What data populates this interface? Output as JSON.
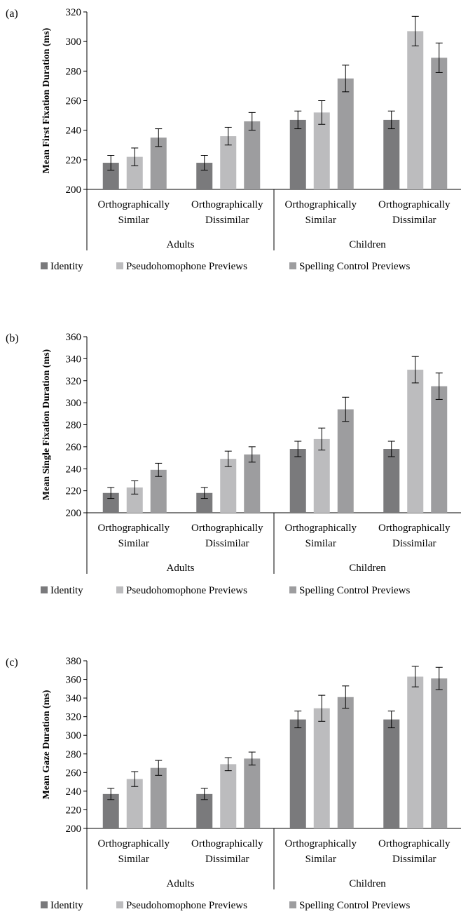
{
  "chart_data": [
    {
      "type": "bar",
      "panel_label": "(a)",
      "ylabel": "Mean First Fixation Duration (ms)",
      "ylim": [
        200,
        320
      ],
      "yticks": [
        200,
        220,
        240,
        260,
        280,
        300,
        320
      ],
      "groups": [
        "Adults",
        "Children"
      ],
      "categories": [
        "Orthographically Similar",
        "Orthographically Dissimilar",
        "Orthographically Similar",
        "Orthographically Dissimilar"
      ],
      "category_lines": [
        [
          "Orthographically",
          "Similar"
        ],
        [
          "Orthographically",
          "Dissimilar"
        ],
        [
          "Orthographically",
          "Similar"
        ],
        [
          "Orthographically",
          "Dissimilar"
        ]
      ],
      "series": [
        {
          "name": "Identity",
          "values": [
            218,
            218,
            247,
            247
          ],
          "errors": [
            5,
            5,
            6,
            6
          ],
          "color": "#7a7a7c"
        },
        {
          "name": "Pseudohomophone Previews",
          "values": [
            222,
            236,
            252,
            307
          ],
          "errors": [
            6,
            6,
            8,
            10
          ],
          "color": "#bcbcbe"
        },
        {
          "name": "Spelling Control Previews",
          "values": [
            235,
            246,
            275,
            289
          ],
          "errors": [
            6,
            6,
            9,
            10
          ],
          "color": "#9d9d9f"
        }
      ],
      "legend": "bottom"
    },
    {
      "type": "bar",
      "panel_label": "(b)",
      "ylabel": "Mean Single Fixation Duration (ms)",
      "ylim": [
        200,
        360
      ],
      "yticks": [
        200,
        220,
        240,
        260,
        280,
        300,
        320,
        340,
        360
      ],
      "groups": [
        "Adults",
        "Children"
      ],
      "categories": [
        "Orthographically Similar",
        "Orthographically Dissimilar",
        "Orthographically Similar",
        "Orthographically Dissimilar"
      ],
      "category_lines": [
        [
          "Orthographically",
          "Similar"
        ],
        [
          "Orthographically",
          "Dissimilar"
        ],
        [
          "Orthographically",
          "Similar"
        ],
        [
          "Orthographically",
          "Dissimilar"
        ]
      ],
      "series": [
        {
          "name": "Identity",
          "values": [
            218,
            218,
            258,
            258
          ],
          "errors": [
            5,
            5,
            7,
            7
          ],
          "color": "#7a7a7c"
        },
        {
          "name": "Pseudohomophone Previews",
          "values": [
            223,
            249,
            267,
            330
          ],
          "errors": [
            6,
            7,
            10,
            12
          ],
          "color": "#bcbcbe"
        },
        {
          "name": "Spelling Control Previews",
          "values": [
            239,
            253,
            294,
            315
          ],
          "errors": [
            6,
            7,
            11,
            12
          ],
          "color": "#9d9d9f"
        }
      ],
      "legend": "bottom"
    },
    {
      "type": "bar",
      "panel_label": "(c)",
      "ylabel": "Mean Gaze Duration (ms)",
      "ylim": [
        200,
        380
      ],
      "yticks": [
        200,
        220,
        240,
        260,
        280,
        300,
        320,
        340,
        360,
        380
      ],
      "groups": [
        "Adults",
        "Children"
      ],
      "categories": [
        "Orthographically Similar",
        "Orthographically Dissimilar",
        "Orthographically Similar",
        "Orthographically Dissimilar"
      ],
      "category_lines": [
        [
          "Orthographically",
          "Similar"
        ],
        [
          "Orthographically",
          "Dissimilar"
        ],
        [
          "Orthographically",
          "Similar"
        ],
        [
          "Orthographically",
          "Dissimilar"
        ]
      ],
      "series": [
        {
          "name": "Identity",
          "values": [
            237,
            237,
            317,
            317
          ],
          "errors": [
            6,
            6,
            9,
            9
          ],
          "color": "#7a7a7c"
        },
        {
          "name": "Pseudohomophone Previews",
          "values": [
            253,
            269,
            329,
            363
          ],
          "errors": [
            8,
            7,
            14,
            11
          ],
          "color": "#bcbcbe"
        },
        {
          "name": "Spelling Control Previews",
          "values": [
            265,
            275,
            341,
            361
          ],
          "errors": [
            8,
            7,
            12,
            12
          ],
          "color": "#9d9d9f"
        }
      ],
      "legend": "bottom"
    }
  ]
}
